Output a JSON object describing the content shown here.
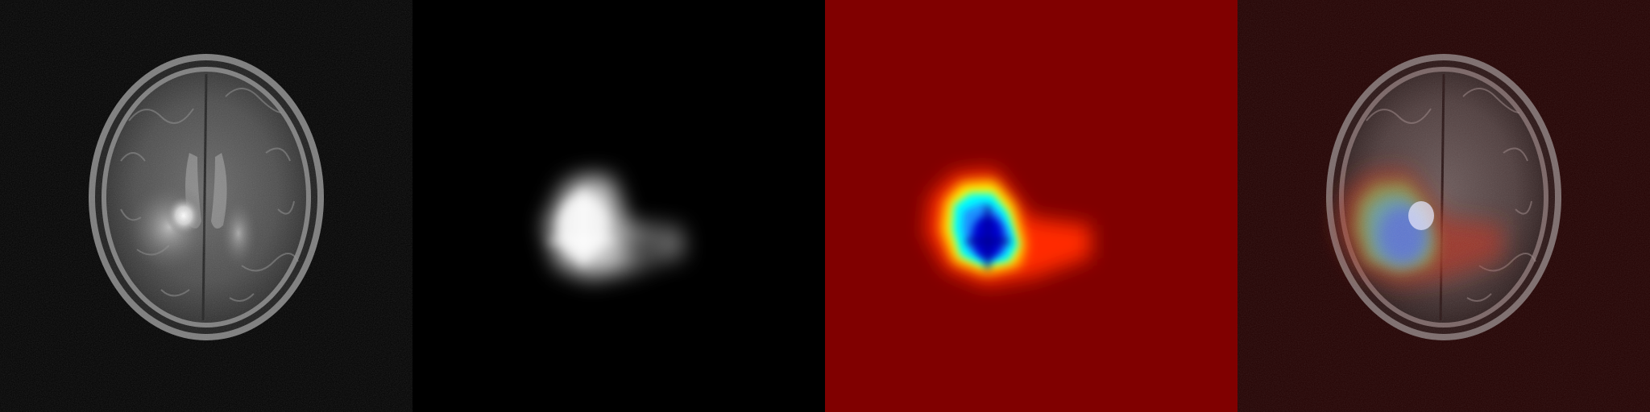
{
  "figure": {
    "panels": [
      {
        "id": "mri",
        "kind": "input-mri-axial-slice"
      },
      {
        "id": "grayscale-map",
        "kind": "grayscale-activation-map"
      },
      {
        "id": "jet-map",
        "kind": "jet-colormap-heatmap"
      },
      {
        "id": "overlay",
        "kind": "heatmap-overlay-on-mri"
      }
    ],
    "colors": {
      "background": "#000000",
      "jet_background": "#800000",
      "overlay_tint": "#220000",
      "jet_peak": "#00007f",
      "jet_high": "#1e90ff",
      "jet_mid": "#00ffff",
      "jet_low_mid": "#ffff00",
      "jet_low": "#ff2a00"
    }
  }
}
